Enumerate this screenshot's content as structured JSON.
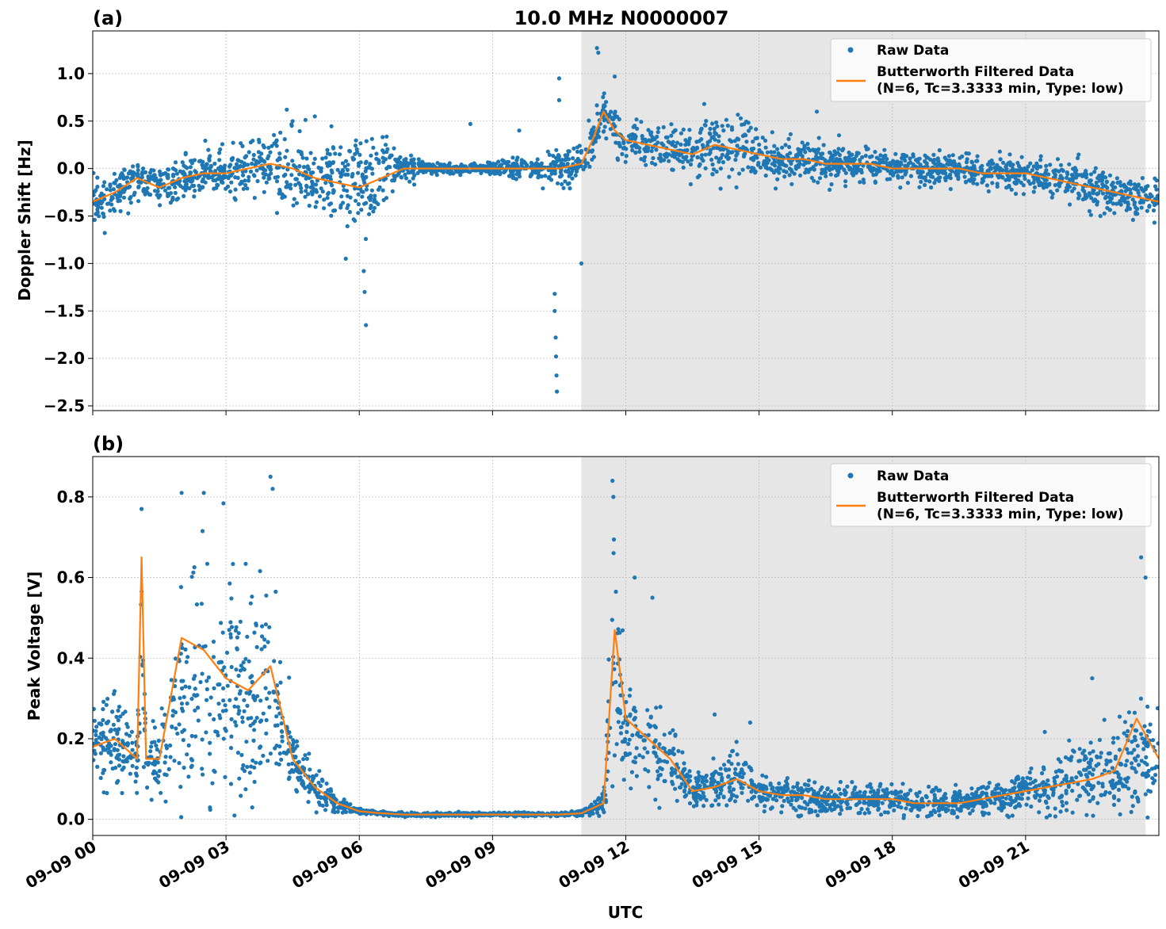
{
  "chart_data": [
    {
      "type": "scatter",
      "panel_label": "(a)",
      "title": "10.0 MHz N0000007",
      "xlabel": "",
      "ylabel": "Doppler Shift [Hz]",
      "xlim": [
        0,
        24
      ],
      "ylim": [
        -2.55,
        1.45
      ],
      "yticks": [
        1.0,
        0.5,
        0.0,
        -0.5,
        -1.0,
        -1.5,
        -2.0,
        -2.5
      ],
      "ytick_labels": [
        "1.0",
        "0.5",
        "0.0",
        "−0.5",
        "−1.0",
        "−1.5",
        "−2.0",
        "−2.5"
      ],
      "xticks": [
        0,
        3,
        6,
        9,
        12,
        15,
        18,
        21
      ],
      "shaded_region": [
        11.0,
        23.7
      ],
      "grid": true,
      "legend": {
        "location": "top-right",
        "entries": [
          "Raw Data",
          "Butterworth Filtered Data",
          "(N=6, Tc=3.3333 min, Type: low)"
        ]
      },
      "series": [
        {
          "name": "Raw Data",
          "kind": "scatter",
          "color": "#1f77b4",
          "x": [
            0,
            0.5,
            1,
            1.5,
            2,
            2.5,
            3,
            3.5,
            4,
            4.5,
            5,
            5.5,
            6,
            6.5,
            7,
            7.5,
            8,
            8.5,
            9,
            9.5,
            10,
            10.5,
            11,
            11.25,
            11.5,
            11.75,
            12,
            12.5,
            13,
            13.5,
            14,
            14.5,
            15,
            15.5,
            16,
            16.5,
            17,
            17.5,
            18,
            18.5,
            19,
            19.5,
            20,
            20.5,
            21,
            21.5,
            22,
            22.5,
            23,
            23.5,
            24
          ],
          "center": [
            -0.35,
            -0.25,
            -0.1,
            -0.2,
            -0.1,
            -0.05,
            -0.05,
            0.0,
            0.05,
            0.0,
            -0.1,
            -0.15,
            -0.2,
            -0.1,
            0.0,
            0.0,
            0.0,
            0.0,
            0.0,
            0.0,
            0.0,
            0.0,
            0.05,
            0.3,
            0.6,
            0.4,
            0.3,
            0.25,
            0.2,
            0.15,
            0.25,
            0.2,
            0.15,
            0.1,
            0.1,
            0.05,
            0.05,
            0.05,
            0.0,
            0.0,
            0.0,
            0.0,
            -0.05,
            -0.05,
            -0.05,
            -0.1,
            -0.15,
            -0.2,
            -0.25,
            -0.3,
            -0.35
          ],
          "spread": [
            0.2,
            0.2,
            0.15,
            0.2,
            0.2,
            0.2,
            0.25,
            0.3,
            0.35,
            0.35,
            0.4,
            0.4,
            0.45,
            0.35,
            0.2,
            0.05,
            0.05,
            0.05,
            0.05,
            0.1,
            0.1,
            0.2,
            0.2,
            0.2,
            0.2,
            0.2,
            0.2,
            0.15,
            0.2,
            0.25,
            0.3,
            0.25,
            0.2,
            0.2,
            0.2,
            0.15,
            0.15,
            0.15,
            0.15,
            0.15,
            0.15,
            0.15,
            0.15,
            0.15,
            0.15,
            0.15,
            0.2,
            0.2,
            0.2,
            0.2,
            0.2
          ],
          "outliers": [
            [
              6.1,
              -1.08
            ],
            [
              6.12,
              -1.3
            ],
            [
              6.15,
              -1.65
            ],
            [
              10.4,
              -1.32
            ],
            [
              10.4,
              -1.5
            ],
            [
              10.42,
              -1.78
            ],
            [
              10.43,
              -1.98
            ],
            [
              10.44,
              -2.18
            ],
            [
              10.45,
              -2.35
            ],
            [
              10.5,
              0.95
            ],
            [
              10.5,
              0.72
            ],
            [
              11.35,
              1.27
            ],
            [
              11.38,
              1.22
            ],
            [
              11.75,
              0.97
            ],
            [
              11.0,
              -1.0
            ],
            [
              8.5,
              0.47
            ],
            [
              9.6,
              0.4
            ],
            [
              16.3,
              0.6
            ],
            [
              16.8,
              0.35
            ],
            [
              5.0,
              0.55
            ],
            [
              4.5,
              0.5
            ]
          ]
        },
        {
          "name": "Butterworth Filtered Data",
          "kind": "line",
          "color": "#ff7f0e",
          "x": [
            0,
            0.5,
            1,
            1.5,
            2,
            2.5,
            3,
            3.5,
            4,
            4.5,
            5,
            5.5,
            6,
            6.5,
            7,
            7.5,
            8,
            8.5,
            9,
            9.5,
            10,
            10.5,
            11,
            11.25,
            11.5,
            11.75,
            12,
            12.5,
            13,
            13.5,
            14,
            14.5,
            15,
            15.5,
            16,
            16.5,
            17,
            17.5,
            18,
            18.5,
            19,
            19.5,
            20,
            20.5,
            21,
            21.5,
            22,
            22.5,
            23,
            23.5,
            24
          ],
          "y": [
            -0.35,
            -0.25,
            -0.1,
            -0.2,
            -0.1,
            -0.05,
            -0.05,
            0.0,
            0.05,
            0.0,
            -0.1,
            -0.15,
            -0.2,
            -0.1,
            0.0,
            0.0,
            0.0,
            0.0,
            0.0,
            0.0,
            0.0,
            0.0,
            0.05,
            0.3,
            0.6,
            0.4,
            0.3,
            0.25,
            0.2,
            0.15,
            0.25,
            0.2,
            0.15,
            0.1,
            0.1,
            0.05,
            0.05,
            0.05,
            0.0,
            0.0,
            0.0,
            0.0,
            -0.05,
            -0.05,
            -0.05,
            -0.1,
            -0.15,
            -0.2,
            -0.25,
            -0.3,
            -0.35
          ]
        }
      ]
    },
    {
      "type": "scatter",
      "panel_label": "(b)",
      "title": "",
      "xlabel": "UTC",
      "ylabel": "Peak Voltage [V]",
      "xlim": [
        0,
        24
      ],
      "ylim": [
        -0.04,
        0.9
      ],
      "yticks": [
        0.0,
        0.2,
        0.4,
        0.6,
        0.8
      ],
      "ytick_labels": [
        "0.0",
        "0.2",
        "0.4",
        "0.6",
        "0.8"
      ],
      "xticks": [
        0,
        3,
        6,
        9,
        12,
        15,
        18,
        21
      ],
      "xtick_labels": [
        "09-09 00",
        "09-09 03",
        "09-09 06",
        "09-09 09",
        "09-09 12",
        "09-09 15",
        "09-09 18",
        "09-09 21"
      ],
      "shaded_region": [
        11.0,
        23.7
      ],
      "grid": true,
      "legend": {
        "location": "top-right",
        "entries": [
          "Raw Data",
          "Butterworth Filtered Data",
          "(N=6, Tc=3.3333 min, Type: low)"
        ]
      },
      "series": [
        {
          "name": "Raw Data",
          "kind": "scatter",
          "color": "#1f77b4",
          "x": [
            0,
            0.5,
            1,
            1.1,
            1.2,
            1.5,
            2,
            2.5,
            3,
            3.5,
            4,
            4.5,
            5,
            5.5,
            6,
            6.5,
            7,
            7.5,
            8,
            8.5,
            9,
            9.5,
            10,
            10.5,
            11,
            11.5,
            11.75,
            12,
            12.5,
            13,
            13.5,
            14,
            14.5,
            15,
            15.5,
            16,
            16.5,
            17,
            17.5,
            18,
            18.5,
            19,
            19.5,
            20,
            20.5,
            21,
            21.5,
            22,
            22.5,
            23,
            23.5,
            24
          ],
          "center": [
            0.18,
            0.2,
            0.15,
            0.5,
            0.15,
            0.15,
            0.3,
            0.35,
            0.32,
            0.3,
            0.3,
            0.15,
            0.08,
            0.04,
            0.02,
            0.015,
            0.012,
            0.012,
            0.012,
            0.012,
            0.012,
            0.012,
            0.012,
            0.012,
            0.015,
            0.04,
            0.4,
            0.2,
            0.18,
            0.15,
            0.07,
            0.08,
            0.1,
            0.07,
            0.06,
            0.06,
            0.05,
            0.05,
            0.05,
            0.05,
            0.04,
            0.04,
            0.04,
            0.05,
            0.06,
            0.07,
            0.08,
            0.09,
            0.1,
            0.12,
            0.15,
            0.15
          ],
          "spread": [
            0.1,
            0.1,
            0.08,
            0.25,
            0.08,
            0.08,
            0.25,
            0.28,
            0.25,
            0.25,
            0.25,
            0.06,
            0.04,
            0.02,
            0.006,
            0.004,
            0.004,
            0.004,
            0.004,
            0.004,
            0.004,
            0.004,
            0.004,
            0.004,
            0.006,
            0.03,
            0.3,
            0.1,
            0.1,
            0.08,
            0.04,
            0.05,
            0.06,
            0.04,
            0.04,
            0.04,
            0.03,
            0.03,
            0.03,
            0.03,
            0.03,
            0.03,
            0.03,
            0.03,
            0.04,
            0.05,
            0.06,
            0.08,
            0.08,
            0.1,
            0.12,
            0.12
          ],
          "outliers": [
            [
              1.1,
              0.77
            ],
            [
              2.5,
              0.81
            ],
            [
              4.0,
              0.85
            ],
            [
              4.05,
              0.82
            ],
            [
              11.7,
              0.84
            ],
            [
              11.72,
              0.8
            ],
            [
              12.2,
              0.6
            ],
            [
              12.6,
              0.55
            ],
            [
              23.6,
              0.65
            ],
            [
              23.7,
              0.6
            ],
            [
              14.0,
              0.26
            ],
            [
              14.8,
              0.24
            ],
            [
              22.5,
              0.35
            ],
            [
              2.0,
              0.81
            ]
          ]
        },
        {
          "name": "Butterworth Filtered Data",
          "kind": "line",
          "color": "#ff7f0e",
          "x": [
            0,
            0.5,
            1,
            1.1,
            1.2,
            1.5,
            2,
            2.5,
            3,
            3.5,
            4,
            4.5,
            5,
            5.5,
            6,
            6.5,
            7,
            7.5,
            8,
            8.5,
            9,
            9.5,
            10,
            10.5,
            11,
            11.5,
            11.75,
            12,
            12.5,
            13,
            13.5,
            14,
            14.5,
            15,
            15.5,
            16,
            16.5,
            17,
            17.5,
            18,
            18.5,
            19,
            19.5,
            20,
            20.5,
            21,
            21.5,
            22,
            22.5,
            23,
            23.5,
            24
          ],
          "y": [
            0.18,
            0.2,
            0.15,
            0.65,
            0.15,
            0.15,
            0.45,
            0.42,
            0.35,
            0.32,
            0.38,
            0.15,
            0.08,
            0.04,
            0.02,
            0.015,
            0.012,
            0.012,
            0.012,
            0.012,
            0.012,
            0.012,
            0.012,
            0.012,
            0.015,
            0.04,
            0.47,
            0.25,
            0.2,
            0.15,
            0.07,
            0.08,
            0.1,
            0.07,
            0.06,
            0.06,
            0.05,
            0.05,
            0.05,
            0.05,
            0.04,
            0.04,
            0.04,
            0.05,
            0.06,
            0.07,
            0.08,
            0.09,
            0.1,
            0.12,
            0.25,
            0.15
          ]
        }
      ]
    }
  ]
}
